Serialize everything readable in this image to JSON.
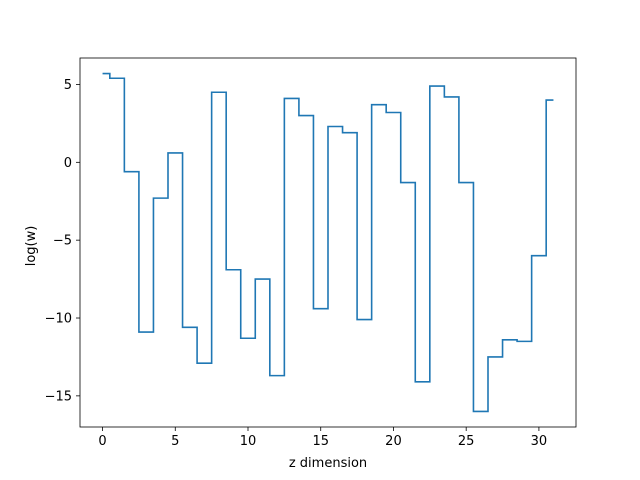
{
  "chart_data": {
    "type": "line",
    "style": "step",
    "title": "",
    "xlabel": "z dimension",
    "ylabel": "log(w)",
    "xlim": [
      -1.55,
      32.55
    ],
    "ylim": [
      -17.0,
      6.7
    ],
    "xticks": [
      0,
      5,
      10,
      15,
      20,
      25,
      30
    ],
    "yticks": [
      -15,
      -10,
      -5,
      0,
      5
    ],
    "ytick_labels": [
      "−15",
      "−10",
      "−5",
      "0",
      "5"
    ],
    "grid": false,
    "legend": "none",
    "color": "#1f77b4",
    "series": [
      {
        "x": [
          0,
          1,
          2,
          3,
          4,
          5,
          6,
          7,
          8,
          9,
          10,
          11,
          12,
          13,
          14,
          15,
          16,
          17,
          18,
          19,
          20,
          21,
          22,
          23,
          24,
          25,
          26,
          27,
          28,
          29,
          30,
          31
        ],
        "y": [
          5.7,
          5.4,
          -0.6,
          -10.9,
          -2.3,
          0.6,
          -10.6,
          -12.9,
          4.5,
          -6.9,
          -11.3,
          -7.5,
          -13.7,
          4.1,
          3.0,
          -9.4,
          2.3,
          1.9,
          -10.1,
          3.7,
          3.2,
          -1.3,
          -14.1,
          4.9,
          4.2,
          -1.3,
          -16.0,
          -12.5,
          -11.4,
          -11.5,
          -6.0,
          4.0
        ]
      }
    ]
  }
}
